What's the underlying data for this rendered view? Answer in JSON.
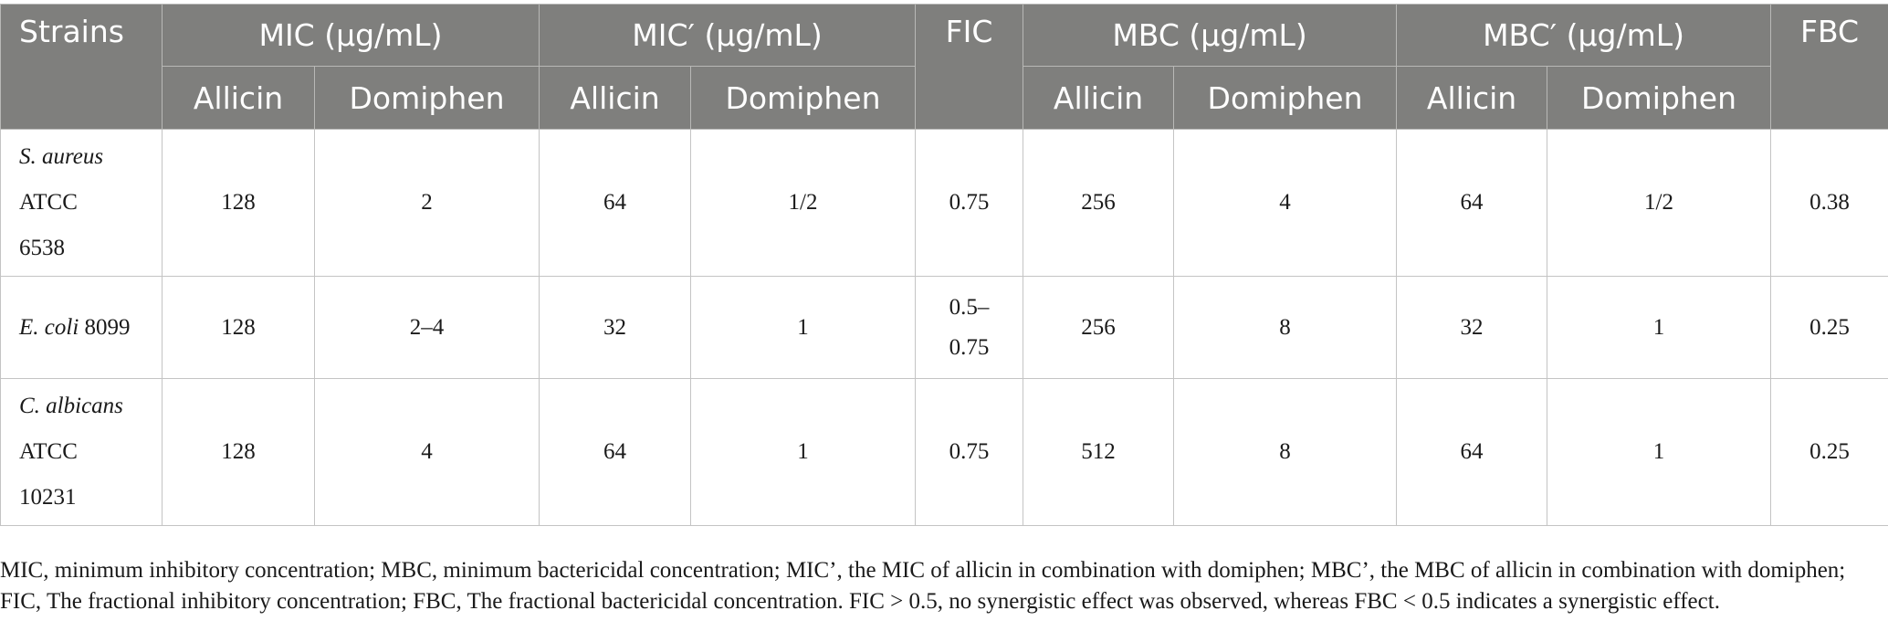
{
  "table": {
    "headers": {
      "strains": "Strains",
      "mic": "MIC (μg/mL)",
      "mic_prime": "MIC′ (μg/mL)",
      "fic": "FIC",
      "mbc": "MBC (μg/mL)",
      "mbc_prime": "MBC′ (μg/mL)",
      "fbc": "FBC",
      "allicin": "Allicin",
      "domiphen": "Domiphen"
    },
    "rows": [
      {
        "strain_species": "S. aureus",
        "strain_line2": "ATCC",
        "strain_line3": "6538",
        "mic_allicin": "128",
        "mic_domiphen": "2",
        "micp_allicin": "64",
        "micp_domiphen": "1/2",
        "fic": "0.75",
        "mbc_allicin": "256",
        "mbc_domiphen": "4",
        "mbcp_allicin": "64",
        "mbcp_domiphen": "1/2",
        "fbc": "0.38"
      },
      {
        "strain_species": "E. coli",
        "strain_suffix": " 8099",
        "mic_allicin": "128",
        "mic_domiphen": "2–4",
        "micp_allicin": "32",
        "micp_domiphen": "1",
        "fic_line1": "0.5–",
        "fic_line2": "0.75",
        "mbc_allicin": "256",
        "mbc_domiphen": "8",
        "mbcp_allicin": "32",
        "mbcp_domiphen": "1",
        "fbc": "0.25"
      },
      {
        "strain_species": "C. albicans",
        "strain_line2": "ATCC",
        "strain_line3": "10231",
        "mic_allicin": "128",
        "mic_domiphen": "4",
        "micp_allicin": "64",
        "micp_domiphen": "1",
        "fic": "0.75",
        "mbc_allicin": "512",
        "mbc_domiphen": "8",
        "mbcp_allicin": "64",
        "mbcp_domiphen": "1",
        "fbc": "0.25"
      }
    ]
  },
  "footnote": "MIC, minimum inhibitory concentration; MBC, minimum bactericidal concentration; MIC’, the MIC of allicin in combination with domiphen; MBC’, the MBC of allicin in combination with domiphen; FIC, The fractional inhibitory concentration; FBC, The fractional bactericidal concentration. FIC > 0.5, no synergistic effect was observed, whereas FBC < 0.5 indicates a synergistic effect.",
  "colors": {
    "header_bg": "#7f7f7d",
    "header_text": "#ffffff",
    "grid": "#c4c4c4"
  }
}
